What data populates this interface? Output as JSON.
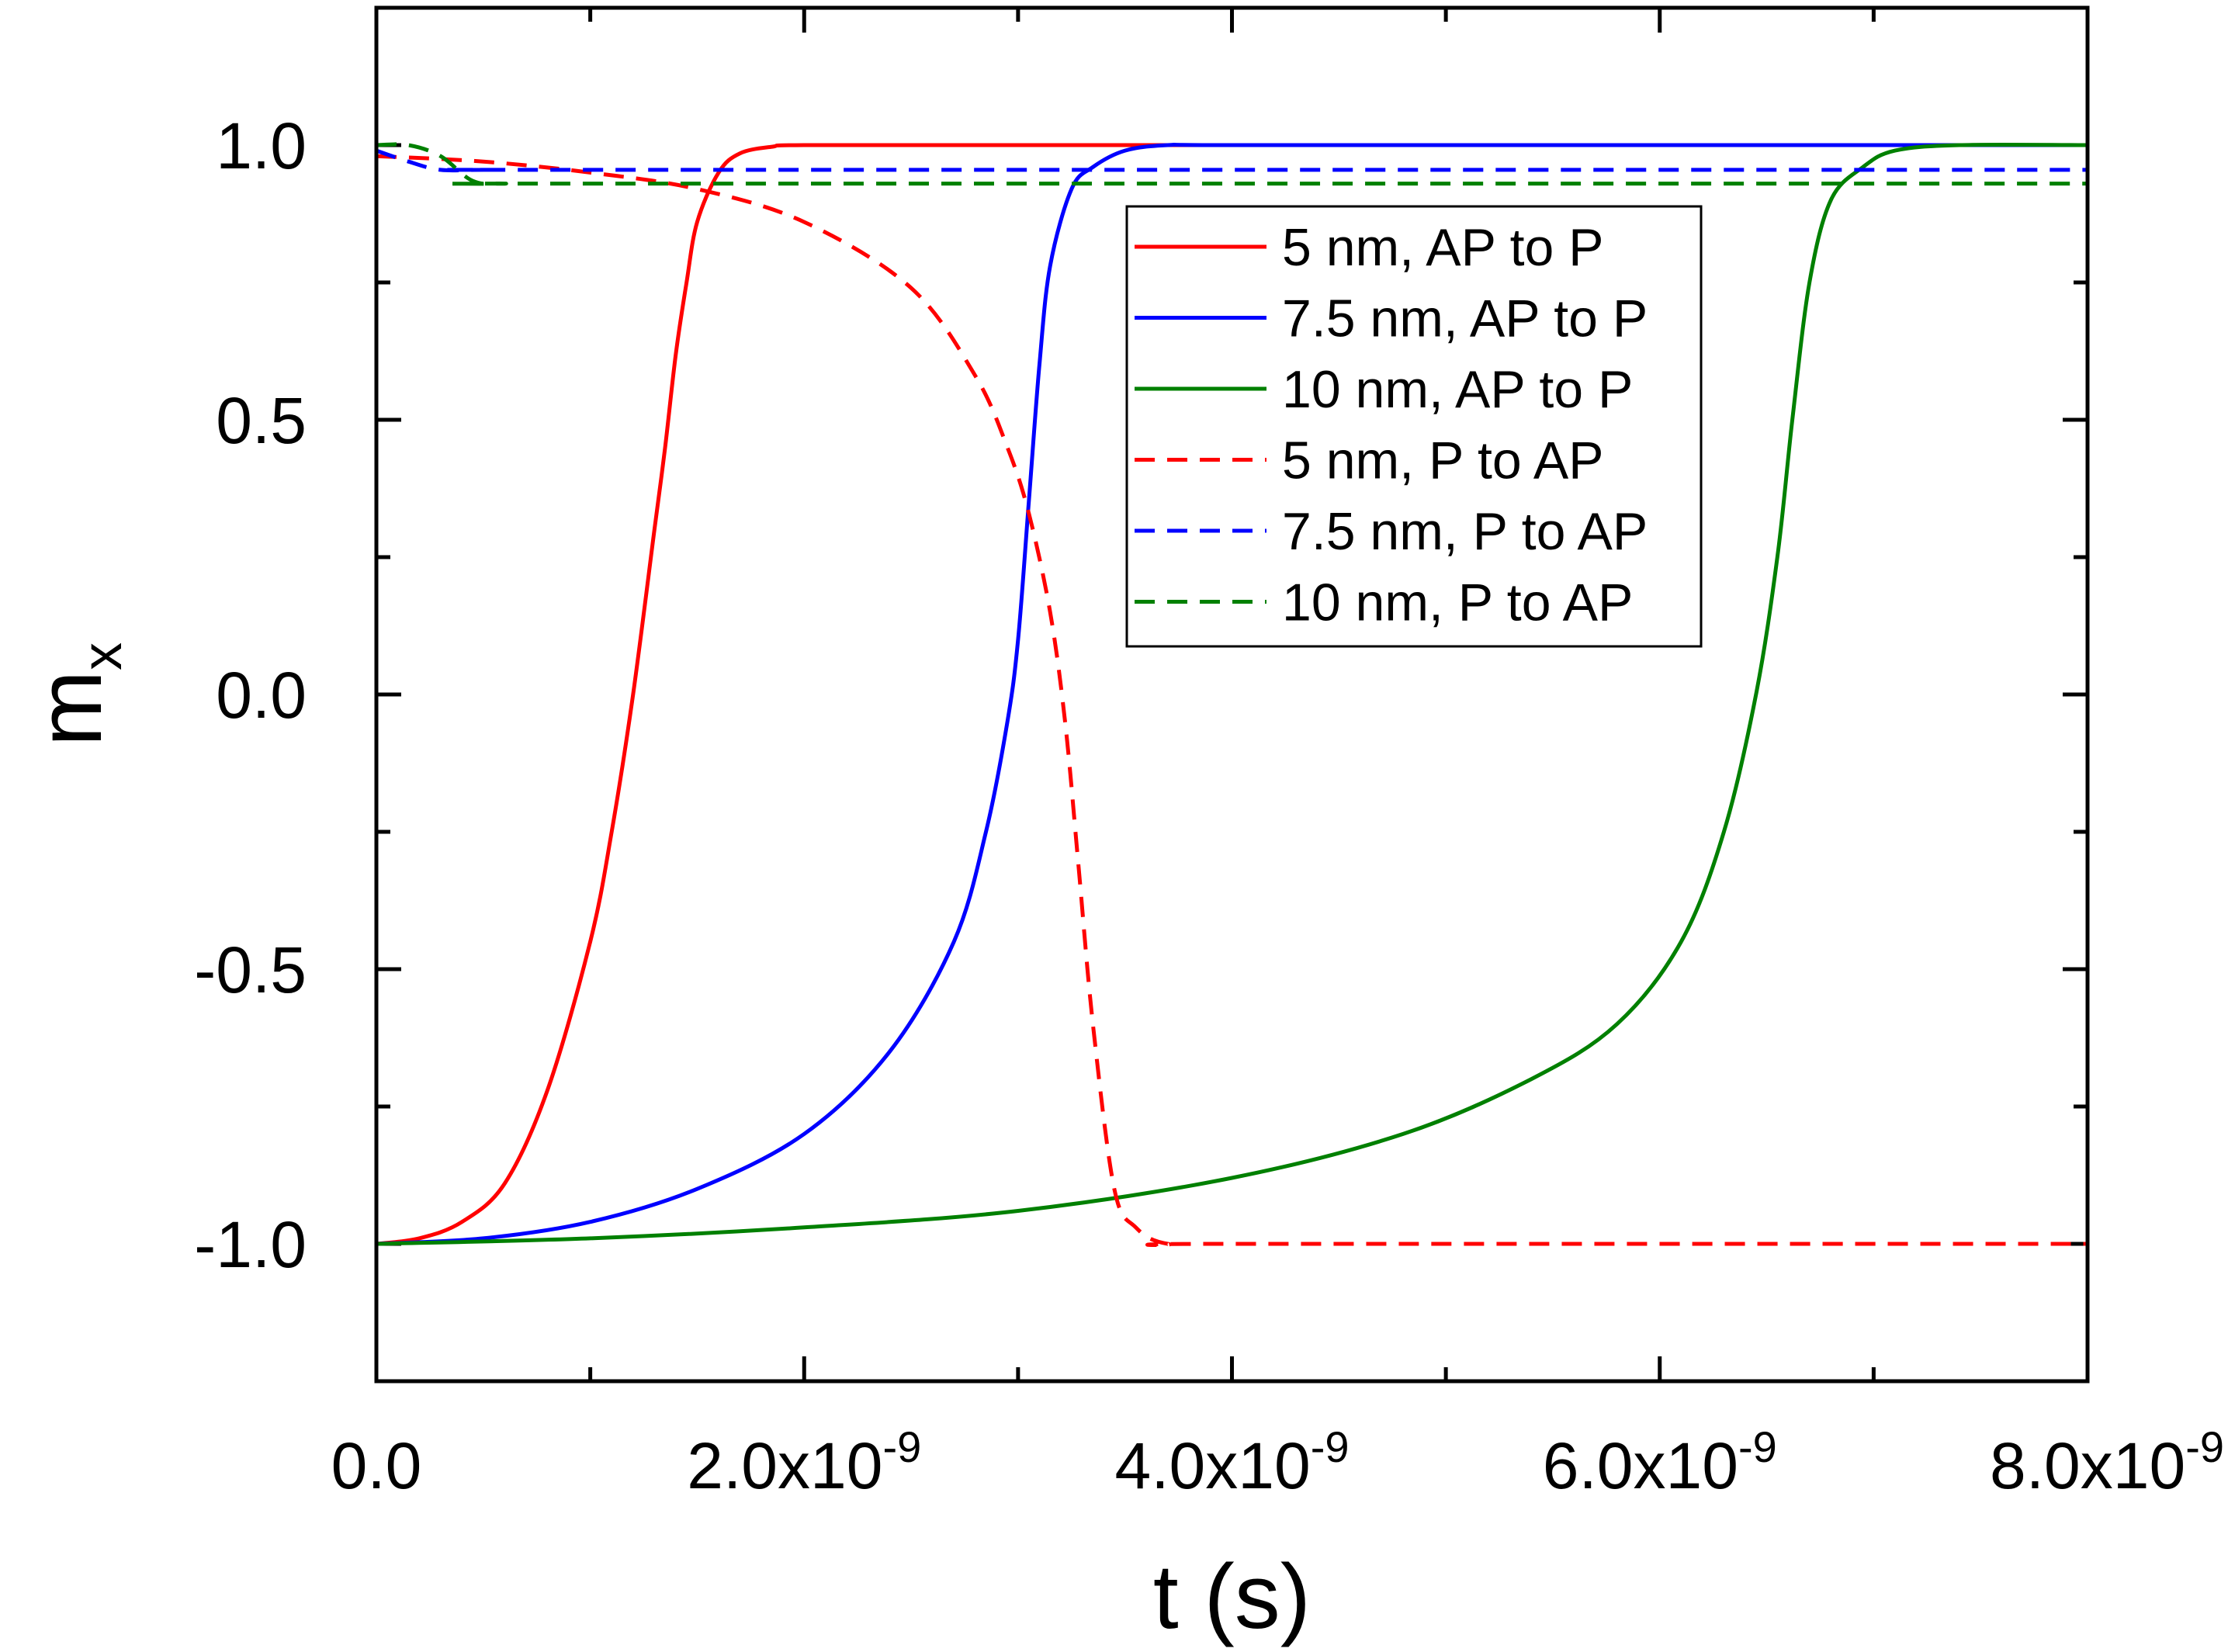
{
  "chart_data": {
    "type": "line",
    "title": "",
    "xlabel": "t (s)",
    "ylabel": {
      "base": "m",
      "subscript": "x"
    },
    "xlim": [
      0,
      8e-09
    ],
    "ylim": [
      -1.25,
      1.25
    ],
    "xticks": [
      {
        "value": 0,
        "mantissa": "0.0",
        "exp": ""
      },
      {
        "value": 2e-09,
        "mantissa": "2.0x10",
        "exp": "-9"
      },
      {
        "value": 4e-09,
        "mantissa": "4.0x10",
        "exp": "-9"
      },
      {
        "value": 6e-09,
        "mantissa": "6.0x10",
        "exp": "-9"
      },
      {
        "value": 8e-09,
        "mantissa": "8.0x10",
        "exp": "-9"
      }
    ],
    "xminor": [
      1e-09,
      3e-09,
      5e-09,
      7e-09
    ],
    "yticks": [
      {
        "value": -1.0,
        "label": "-1.0"
      },
      {
        "value": -0.5,
        "label": "-0.5"
      },
      {
        "value": 0.0,
        "label": "0.0"
      },
      {
        "value": 0.5,
        "label": "0.5"
      },
      {
        "value": 1.0,
        "label": "1.0"
      }
    ],
    "yminor": [
      -0.75,
      -0.25,
      0.25,
      0.75
    ],
    "legend_position": "upper-right",
    "series": [
      {
        "name": "5 nm, AP to P",
        "color": "#ff0000",
        "style": "solid",
        "x": [
          0,
          2e-10,
          4e-10,
          6e-10,
          8e-10,
          1e-09,
          1.1e-09,
          1.2e-09,
          1.3e-09,
          1.35e-09,
          1.4e-09,
          1.45e-09,
          1.5e-09,
          1.6e-09,
          1.7e-09,
          1.85e-09,
          2e-09,
          3e-09,
          5e-09,
          8e-09
        ],
        "y": [
          -1.0,
          -0.99,
          -0.96,
          -0.89,
          -0.72,
          -0.45,
          -0.25,
          0.0,
          0.3,
          0.45,
          0.62,
          0.75,
          0.86,
          0.95,
          0.985,
          0.997,
          1.0,
          1.0,
          1.0,
          1.0
        ]
      },
      {
        "name": "7.5 nm, AP to P",
        "color": "#0000ff",
        "style": "solid",
        "x": [
          0,
          5e-10,
          1e-09,
          1.5e-09,
          2e-09,
          2.4e-09,
          2.7e-09,
          2.85e-09,
          2.95e-09,
          3e-09,
          3.05e-09,
          3.1e-09,
          3.15e-09,
          3.25e-09,
          3.35e-09,
          3.5e-09,
          3.7e-09,
          4e-09,
          6e-09,
          8e-09
        ],
        "y": [
          -1.0,
          -0.99,
          -0.96,
          -0.9,
          -0.8,
          -0.65,
          -0.45,
          -0.25,
          -0.05,
          0.1,
          0.35,
          0.6,
          0.78,
          0.92,
          0.96,
          0.99,
          1.0,
          1.0,
          1.0,
          1.0
        ]
      },
      {
        "name": "10 nm, AP to P",
        "color": "#008000",
        "style": "solid",
        "x": [
          0,
          1e-09,
          2e-09,
          3e-09,
          4e-09,
          4.8e-09,
          5.4e-09,
          5.8e-09,
          6.1e-09,
          6.3e-09,
          6.45e-09,
          6.55e-09,
          6.62e-09,
          6.7e-09,
          6.8e-09,
          6.95e-09,
          7.1e-09,
          7.4e-09,
          8e-09
        ],
        "y": [
          -1.0,
          -0.99,
          -0.97,
          -0.94,
          -0.88,
          -0.8,
          -0.7,
          -0.6,
          -0.45,
          -0.25,
          0.0,
          0.25,
          0.5,
          0.75,
          0.9,
          0.96,
          0.99,
          1.0,
          1.0
        ]
      },
      {
        "name": "5 nm, P to AP",
        "color": "#ff0000",
        "style": "dashed",
        "x": [
          0,
          5e-10,
          1e-09,
          1.5e-09,
          2e-09,
          2.5e-09,
          2.8e-09,
          2.95e-09,
          3.05e-09,
          3.15e-09,
          3.22e-09,
          3.28e-09,
          3.35e-09,
          3.45e-09,
          3.55e-09,
          3.7e-09,
          4e-09,
          8e-09
        ],
        "y": [
          0.98,
          0.97,
          0.95,
          0.92,
          0.86,
          0.74,
          0.58,
          0.45,
          0.33,
          0.15,
          -0.05,
          -0.3,
          -0.6,
          -0.9,
          -0.97,
          -1.0,
          -1.0,
          -1.0
        ]
      },
      {
        "name": "7.5 nm, P to AP",
        "color": "#0000ff",
        "style": "dashed",
        "x": [
          0,
          1.5e-10,
          3e-10,
          5e-10,
          1e-09,
          8e-09
        ],
        "y": [
          0.99,
          0.97,
          0.955,
          0.955,
          0.955,
          0.955
        ]
      },
      {
        "name": "10 nm, P to AP",
        "color": "#008000",
        "style": "dashed",
        "x": [
          0,
          1.5e-10,
          3e-10,
          4.5e-10,
          6e-10,
          1e-09,
          8e-09
        ],
        "y": [
          1.0,
          1.0,
          0.98,
          0.935,
          0.93,
          0.93,
          0.93
        ]
      }
    ]
  }
}
